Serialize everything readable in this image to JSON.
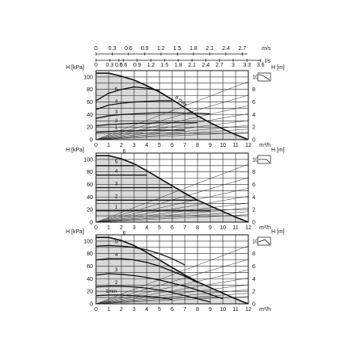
{
  "units": {
    "flow_ms": "m/s",
    "flow_ls": "l/s",
    "flow_m3h": "m³/h",
    "head_kpa": "H [kPa]",
    "head_m": "H [m]"
  },
  "top_scale_ms": [
    "0",
    "0.3",
    "0.6",
    "0.9",
    "1.2",
    "1.5",
    "1.8",
    "2.1",
    "2.4",
    "2.7"
  ],
  "top_scale_ls": [
    "0",
    "0.3",
    "0.5",
    "0.6",
    "0.9",
    "1.2",
    "1.5",
    "1.8",
    "2.1",
    "2.4",
    "2.7",
    "3",
    "3.3",
    "3.6"
  ],
  "colors": {
    "ink": "#111111",
    "grid": "#222222",
    "shade": "#d9d9d9",
    "thin": "#333333"
  },
  "chart_data": [
    {
      "type": "line",
      "mode": "speed setting curves",
      "x_axis": {
        "unit": "m³/h",
        "range": [
          0,
          12
        ],
        "ticks": [
          0,
          1,
          2,
          3,
          4,
          5,
          6,
          7,
          8,
          9,
          10,
          11,
          12
        ]
      },
      "y_left": {
        "label": "H [kPa]",
        "range": [
          0,
          110
        ],
        "ticks": [
          0,
          20,
          40,
          60,
          80,
          100
        ]
      },
      "y_right": {
        "label": "H [m]",
        "range": [
          0,
          11
        ],
        "ticks": [
          0,
          2,
          4,
          6,
          8,
          10
        ]
      },
      "grid": true,
      "max_curve": {
        "label": "6 max",
        "x": [
          0,
          1,
          2,
          3,
          4,
          5,
          6,
          7,
          8,
          9,
          10,
          11,
          12
        ],
        "y": [
          106,
          106,
          101,
          95,
          86,
          76,
          64,
          51,
          38,
          27,
          17,
          8,
          0
        ]
      },
      "series": [
        {
          "name": "5",
          "x": [
            0,
            1,
            2,
            3,
            4,
            5
          ],
          "y": [
            62,
            74,
            80,
            84,
            82,
            78
          ]
        },
        {
          "name": "4",
          "x": [
            0,
            1,
            2,
            3,
            4,
            5,
            6
          ],
          "y": [
            48,
            55,
            58,
            60,
            61,
            62,
            62
          ]
        },
        {
          "name": "3",
          "x": [
            0,
            1,
            2,
            3,
            4,
            5,
            6,
            7,
            8,
            9
          ],
          "y": [
            34,
            38,
            40,
            41,
            42,
            43,
            43,
            42,
            42,
            41
          ]
        },
        {
          "name": "2",
          "x": [
            0,
            1,
            2,
            3,
            4,
            5,
            6,
            7,
            8
          ],
          "y": [
            22,
            24,
            25,
            26,
            26,
            27,
            27,
            27,
            27
          ]
        },
        {
          "name": "1",
          "x": [
            0,
            1,
            2,
            3,
            4,
            5,
            6,
            7
          ],
          "y": [
            12,
            13,
            14,
            14,
            15,
            15,
            15,
            15
          ]
        }
      ]
    },
    {
      "type": "line",
      "mode": "constant pressure curves",
      "x_axis": {
        "unit": "m³/h",
        "range": [
          0,
          12
        ],
        "ticks": [
          0,
          1,
          2,
          3,
          4,
          5,
          6,
          7,
          8,
          9,
          10,
          11,
          12
        ]
      },
      "y_left": {
        "label": "H [kPa]",
        "range": [
          0,
          110
        ],
        "ticks": [
          0,
          20,
          40,
          60,
          80,
          100
        ]
      },
      "y_right": {
        "label": "H [m]",
        "range": [
          0,
          11
        ],
        "ticks": [
          0,
          2,
          4,
          6,
          8,
          10
        ]
      },
      "grid": true,
      "max_curve": {
        "label": "6",
        "x": [
          0,
          1,
          2,
          3,
          4,
          5,
          6,
          7,
          8,
          9,
          10,
          11,
          12
        ],
        "y": [
          106,
          106,
          101,
          93,
          82,
          70,
          58,
          46,
          35,
          26,
          17,
          8,
          0
        ]
      },
      "series": [
        {
          "name": "5",
          "x": [
            0,
            1,
            2,
            3
          ],
          "y": [
            90,
            90,
            90,
            90
          ]
        },
        {
          "name": "4",
          "x": [
            0,
            1,
            2,
            3,
            4
          ],
          "y": [
            75,
            75,
            75,
            75,
            75
          ]
        },
        {
          "name": "3",
          "x": [
            0,
            1,
            2,
            3,
            4,
            5,
            6
          ],
          "y": [
            55,
            55,
            55,
            55,
            55,
            55,
            55
          ]
        },
        {
          "name": "2",
          "x": [
            0,
            1,
            2,
            3,
            4,
            5,
            6,
            7,
            8
          ],
          "y": [
            35,
            35,
            35,
            35,
            35,
            35,
            35,
            35,
            35
          ]
        },
        {
          "name": "1",
          "x": [
            0,
            1,
            2,
            3,
            4,
            5,
            6,
            7,
            8,
            9
          ],
          "y": [
            18,
            18,
            18,
            18,
            18,
            18,
            18,
            18,
            18,
            18
          ]
        }
      ]
    },
    {
      "type": "line",
      "mode": "proportional pressure curves",
      "x_axis": {
        "unit": "m³/h",
        "range": [
          0,
          12
        ],
        "ticks": [
          0,
          1,
          2,
          3,
          4,
          5,
          6,
          7,
          8,
          9,
          10,
          11,
          12
        ]
      },
      "y_left": {
        "label": "H [kPa]",
        "range": [
          0,
          110
        ],
        "ticks": [
          0,
          20,
          40,
          60,
          80,
          100
        ]
      },
      "y_right": {
        "label": "H [m]",
        "range": [
          0,
          11
        ],
        "ticks": [
          0,
          2,
          4,
          6,
          8,
          10
        ]
      },
      "grid": true,
      "max_curve": {
        "label": "6",
        "x": [
          0,
          1,
          2,
          3,
          4,
          5,
          6,
          7,
          8,
          9,
          10,
          11,
          12
        ],
        "y": [
          106,
          106,
          101,
          93,
          82,
          70,
          58,
          46,
          35,
          26,
          17,
          8,
          0
        ]
      },
      "series": [
        {
          "name": "5",
          "x": [
            0,
            1,
            2,
            3,
            4,
            5,
            6,
            7
          ],
          "y": [
            92,
            93,
            92,
            90,
            86,
            80,
            72,
            62
          ]
        },
        {
          "name": "4",
          "x": [
            0,
            1,
            2,
            3,
            4,
            5,
            6,
            7,
            8
          ],
          "y": [
            70,
            72,
            72,
            70,
            66,
            60,
            52,
            44,
            34
          ]
        },
        {
          "name": "3",
          "x": [
            0,
            1,
            2,
            3,
            4,
            5,
            6,
            7,
            8,
            9,
            10
          ],
          "y": [
            46,
            48,
            47,
            45,
            42,
            38,
            33,
            28,
            22,
            15,
            8
          ]
        },
        {
          "name": "2",
          "x": [
            0,
            1,
            2,
            3,
            4,
            5,
            6,
            7,
            8,
            9
          ],
          "y": [
            27,
            28,
            28,
            27,
            25,
            22,
            18,
            13,
            8,
            3
          ]
        },
        {
          "name": "1min",
          "x": [
            0,
            1,
            2,
            3,
            4,
            5,
            6
          ],
          "y": [
            13,
            14,
            14,
            13,
            12,
            10,
            7
          ]
        }
      ]
    }
  ]
}
